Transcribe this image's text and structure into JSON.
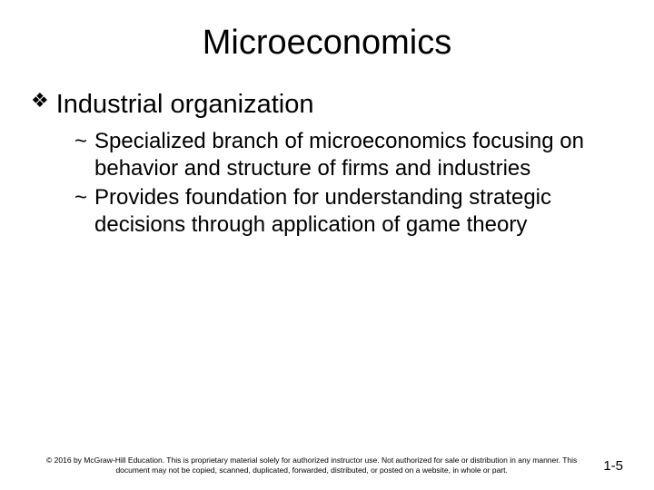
{
  "title": "Microeconomics",
  "level1": {
    "bullet": "❖",
    "text": "Industrial organization"
  },
  "level2a": {
    "bullet": "~",
    "text": "Specialized branch of microeconomics focusing on behavior and structure of firms and industries"
  },
  "level2b": {
    "bullet": "~",
    "text": "Provides foundation for understanding strategic decisions through application of game theory"
  },
  "copyright": "© 2016 by McGraw-Hill Education. This is proprietary material solely for authorized instructor use. Not authorized for sale or distribution in any manner. This document may not be copied, scanned, duplicated, forwarded, distributed, or posted on a website, in whole or part.",
  "pagenum": "1-5",
  "colors": {
    "background": "#ffffff",
    "text": "#000000"
  },
  "fonts": {
    "title_size": 38,
    "level1_size": 29,
    "level2_size": 24,
    "copyright_size": 8.5,
    "pagenum_size": 15
  }
}
